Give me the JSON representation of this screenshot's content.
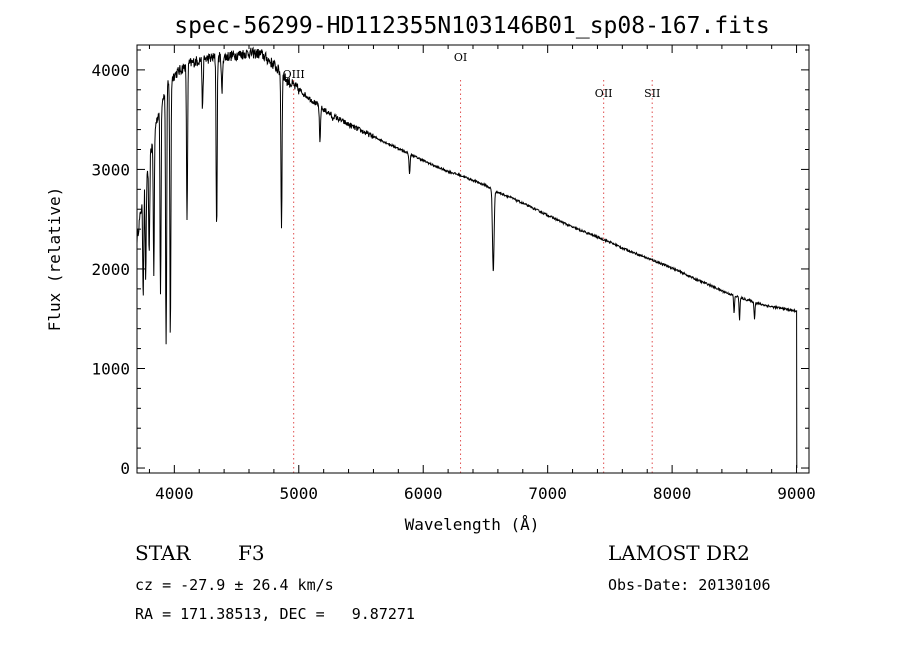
{
  "chart_data": {
    "type": "line",
    "title": "spec-56299-HD112355N103146B01_sp08-167.fits",
    "xlabel": "Wavelength (Å)",
    "ylabel": "Flux (relative)",
    "xlim": [
      3700,
      9100
    ],
    "ylim": [
      -50,
      4250
    ],
    "xticks": [
      4000,
      5000,
      6000,
      7000,
      8000,
      9000
    ],
    "yticks": [
      0,
      1000,
      2000,
      3000,
      4000
    ],
    "grid": false,
    "line_color": "#000000",
    "marker_color": "#e05050",
    "line_markers": [
      {
        "label": "OIII",
        "x": 4959
      },
      {
        "label": "OI",
        "x": 6300
      },
      {
        "label": "OII",
        "x": 7450
      },
      {
        "label": "SII",
        "x": 7840
      }
    ],
    "continuum": [
      [
        3700,
        2300
      ],
      [
        3750,
        2750
      ],
      [
        3800,
        3100
      ],
      [
        3850,
        3450
      ],
      [
        3900,
        3700
      ],
      [
        3950,
        3850
      ],
      [
        4000,
        3950
      ],
      [
        4100,
        4050
      ],
      [
        4200,
        4100
      ],
      [
        4300,
        4120
      ],
      [
        4400,
        4130
      ],
      [
        4500,
        4150
      ],
      [
        4600,
        4170
      ],
      [
        4700,
        4160
      ],
      [
        4800,
        4050
      ],
      [
        4900,
        3900
      ],
      [
        5000,
        3800
      ],
      [
        5100,
        3700
      ],
      [
        5200,
        3600
      ],
      [
        5300,
        3520
      ],
      [
        5400,
        3450
      ],
      [
        5500,
        3390
      ],
      [
        5600,
        3330
      ],
      [
        5700,
        3270
      ],
      [
        5800,
        3210
      ],
      [
        5900,
        3150
      ],
      [
        6000,
        3090
      ],
      [
        6100,
        3030
      ],
      [
        6200,
        2980
      ],
      [
        6300,
        2940
      ],
      [
        6400,
        2890
      ],
      [
        6500,
        2840
      ],
      [
        6600,
        2770
      ],
      [
        6700,
        2720
      ],
      [
        6800,
        2660
      ],
      [
        6900,
        2600
      ],
      [
        7000,
        2540
      ],
      [
        7100,
        2480
      ],
      [
        7200,
        2420
      ],
      [
        7300,
        2370
      ],
      [
        7400,
        2320
      ],
      [
        7500,
        2270
      ],
      [
        7600,
        2210
      ],
      [
        7700,
        2160
      ],
      [
        7800,
        2110
      ],
      [
        7900,
        2060
      ],
      [
        8000,
        2010
      ],
      [
        8100,
        1950
      ],
      [
        8200,
        1890
      ],
      [
        8300,
        1840
      ],
      [
        8400,
        1780
      ],
      [
        8500,
        1730
      ],
      [
        8600,
        1690
      ],
      [
        8700,
        1650
      ],
      [
        8800,
        1620
      ],
      [
        8900,
        1600
      ],
      [
        8980,
        1580
      ],
      [
        9000,
        1580
      ]
    ],
    "absorption_lines": [
      [
        3750,
        1750
      ],
      [
        3770,
        1900
      ],
      [
        3798,
        2100
      ],
      [
        3835,
        1950
      ],
      [
        3889,
        1750
      ],
      [
        3934,
        1200
      ],
      [
        3968,
        1300
      ],
      [
        4102,
        2450
      ],
      [
        4227,
        3600
      ],
      [
        4340,
        2400
      ],
      [
        4383,
        3750
      ],
      [
        4861,
        2400
      ],
      [
        5170,
        3250
      ],
      [
        5270,
        3500
      ],
      [
        5890,
        2950
      ],
      [
        6563,
        1970
      ],
      [
        8498,
        1550
      ],
      [
        8542,
        1480
      ],
      [
        8662,
        1500
      ]
    ]
  },
  "info": {
    "object_class": "STAR",
    "subclass": "F3",
    "survey": "LAMOST DR2",
    "redshift": "cz = -27.9 ± 26.4 km/s",
    "obs_date": "Obs-Date: 20130106",
    "coords": "RA = 171.38513, DEC =   9.87271"
  }
}
